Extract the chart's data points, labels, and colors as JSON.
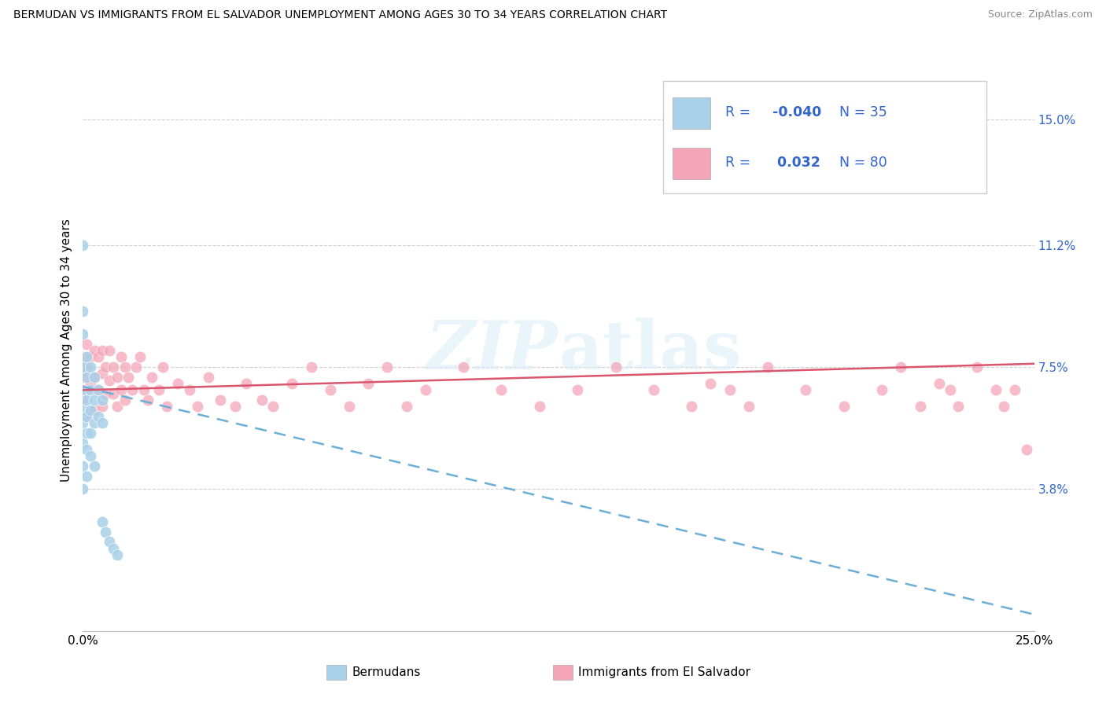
{
  "title": "BERMUDAN VS IMMIGRANTS FROM EL SALVADOR UNEMPLOYMENT AMONG AGES 30 TO 34 YEARS CORRELATION CHART",
  "source": "Source: ZipAtlas.com",
  "ylabel": "Unemployment Among Ages 30 to 34 years",
  "xlim": [
    0.0,
    0.25
  ],
  "ylim": [
    -0.005,
    0.165
  ],
  "x_ticks": [
    0.0,
    0.25
  ],
  "x_tick_labels": [
    "0.0%",
    "25.0%"
  ],
  "y_tick_values": [
    0.038,
    0.075,
    0.112,
    0.15
  ],
  "y_tick_labels": [
    "3.8%",
    "7.5%",
    "11.2%",
    "15.0%"
  ],
  "R_bermuda": -0.04,
  "N_bermuda": 35,
  "R_salvador": 0.032,
  "N_salvador": 80,
  "color_bermuda": "#a8d0e8",
  "color_salvador": "#f4a6b8",
  "trendline_bermuda_color": "#6baed6",
  "trendline_salvador_color": "#d9566e",
  "legend_text_color": "#3366cc",
  "watermark_color": "#d8eef8",
  "legend_labels": [
    "Bermudans",
    "Immigrants from El Salvador"
  ],
  "trendline_berm_y0": 0.069,
  "trendline_berm_y1": 0.0,
  "trendline_salv_y0": 0.068,
  "trendline_salv_y1": 0.076,
  "berm_x": [
    0.0,
    0.0,
    0.0,
    0.0,
    0.0,
    0.0,
    0.0,
    0.0,
    0.0,
    0.0,
    0.001,
    0.001,
    0.001,
    0.001,
    0.001,
    0.001,
    0.001,
    0.002,
    0.002,
    0.002,
    0.002,
    0.002,
    0.003,
    0.003,
    0.003,
    0.003,
    0.004,
    0.004,
    0.005,
    0.005,
    0.005,
    0.006,
    0.007,
    0.008,
    0.009
  ],
  "berm_y": [
    0.112,
    0.092,
    0.085,
    0.075,
    0.068,
    0.062,
    0.058,
    0.052,
    0.045,
    0.038,
    0.078,
    0.072,
    0.065,
    0.06,
    0.055,
    0.05,
    0.042,
    0.075,
    0.068,
    0.062,
    0.055,
    0.048,
    0.072,
    0.065,
    0.058,
    0.045,
    0.068,
    0.06,
    0.065,
    0.058,
    0.028,
    0.025,
    0.022,
    0.02,
    0.018
  ],
  "salv_x": [
    0.0,
    0.0,
    0.0,
    0.001,
    0.001,
    0.001,
    0.001,
    0.002,
    0.002,
    0.003,
    0.003,
    0.003,
    0.004,
    0.004,
    0.005,
    0.005,
    0.005,
    0.006,
    0.006,
    0.007,
    0.007,
    0.008,
    0.008,
    0.009,
    0.009,
    0.01,
    0.01,
    0.011,
    0.011,
    0.012,
    0.013,
    0.014,
    0.015,
    0.016,
    0.017,
    0.018,
    0.02,
    0.021,
    0.022,
    0.025,
    0.028,
    0.03,
    0.033,
    0.036,
    0.04,
    0.043,
    0.047,
    0.05,
    0.055,
    0.06,
    0.065,
    0.07,
    0.075,
    0.08,
    0.085,
    0.09,
    0.1,
    0.11,
    0.12,
    0.13,
    0.14,
    0.15,
    0.16,
    0.165,
    0.17,
    0.175,
    0.18,
    0.19,
    0.2,
    0.21,
    0.215,
    0.22,
    0.225,
    0.228,
    0.23,
    0.235,
    0.24,
    0.242,
    0.245,
    0.248
  ],
  "salv_y": [
    0.078,
    0.072,
    0.065,
    0.082,
    0.075,
    0.068,
    0.06,
    0.078,
    0.07,
    0.08,
    0.072,
    0.062,
    0.078,
    0.068,
    0.08,
    0.073,
    0.063,
    0.075,
    0.067,
    0.08,
    0.071,
    0.075,
    0.067,
    0.072,
    0.063,
    0.078,
    0.068,
    0.075,
    0.065,
    0.072,
    0.068,
    0.075,
    0.078,
    0.068,
    0.065,
    0.072,
    0.068,
    0.075,
    0.063,
    0.07,
    0.068,
    0.063,
    0.072,
    0.065,
    0.063,
    0.07,
    0.065,
    0.063,
    0.07,
    0.075,
    0.068,
    0.063,
    0.07,
    0.075,
    0.063,
    0.068,
    0.075,
    0.068,
    0.063,
    0.068,
    0.075,
    0.068,
    0.063,
    0.07,
    0.068,
    0.063,
    0.075,
    0.068,
    0.063,
    0.068,
    0.075,
    0.063,
    0.07,
    0.068,
    0.063,
    0.075,
    0.068,
    0.063,
    0.068,
    0.05
  ]
}
